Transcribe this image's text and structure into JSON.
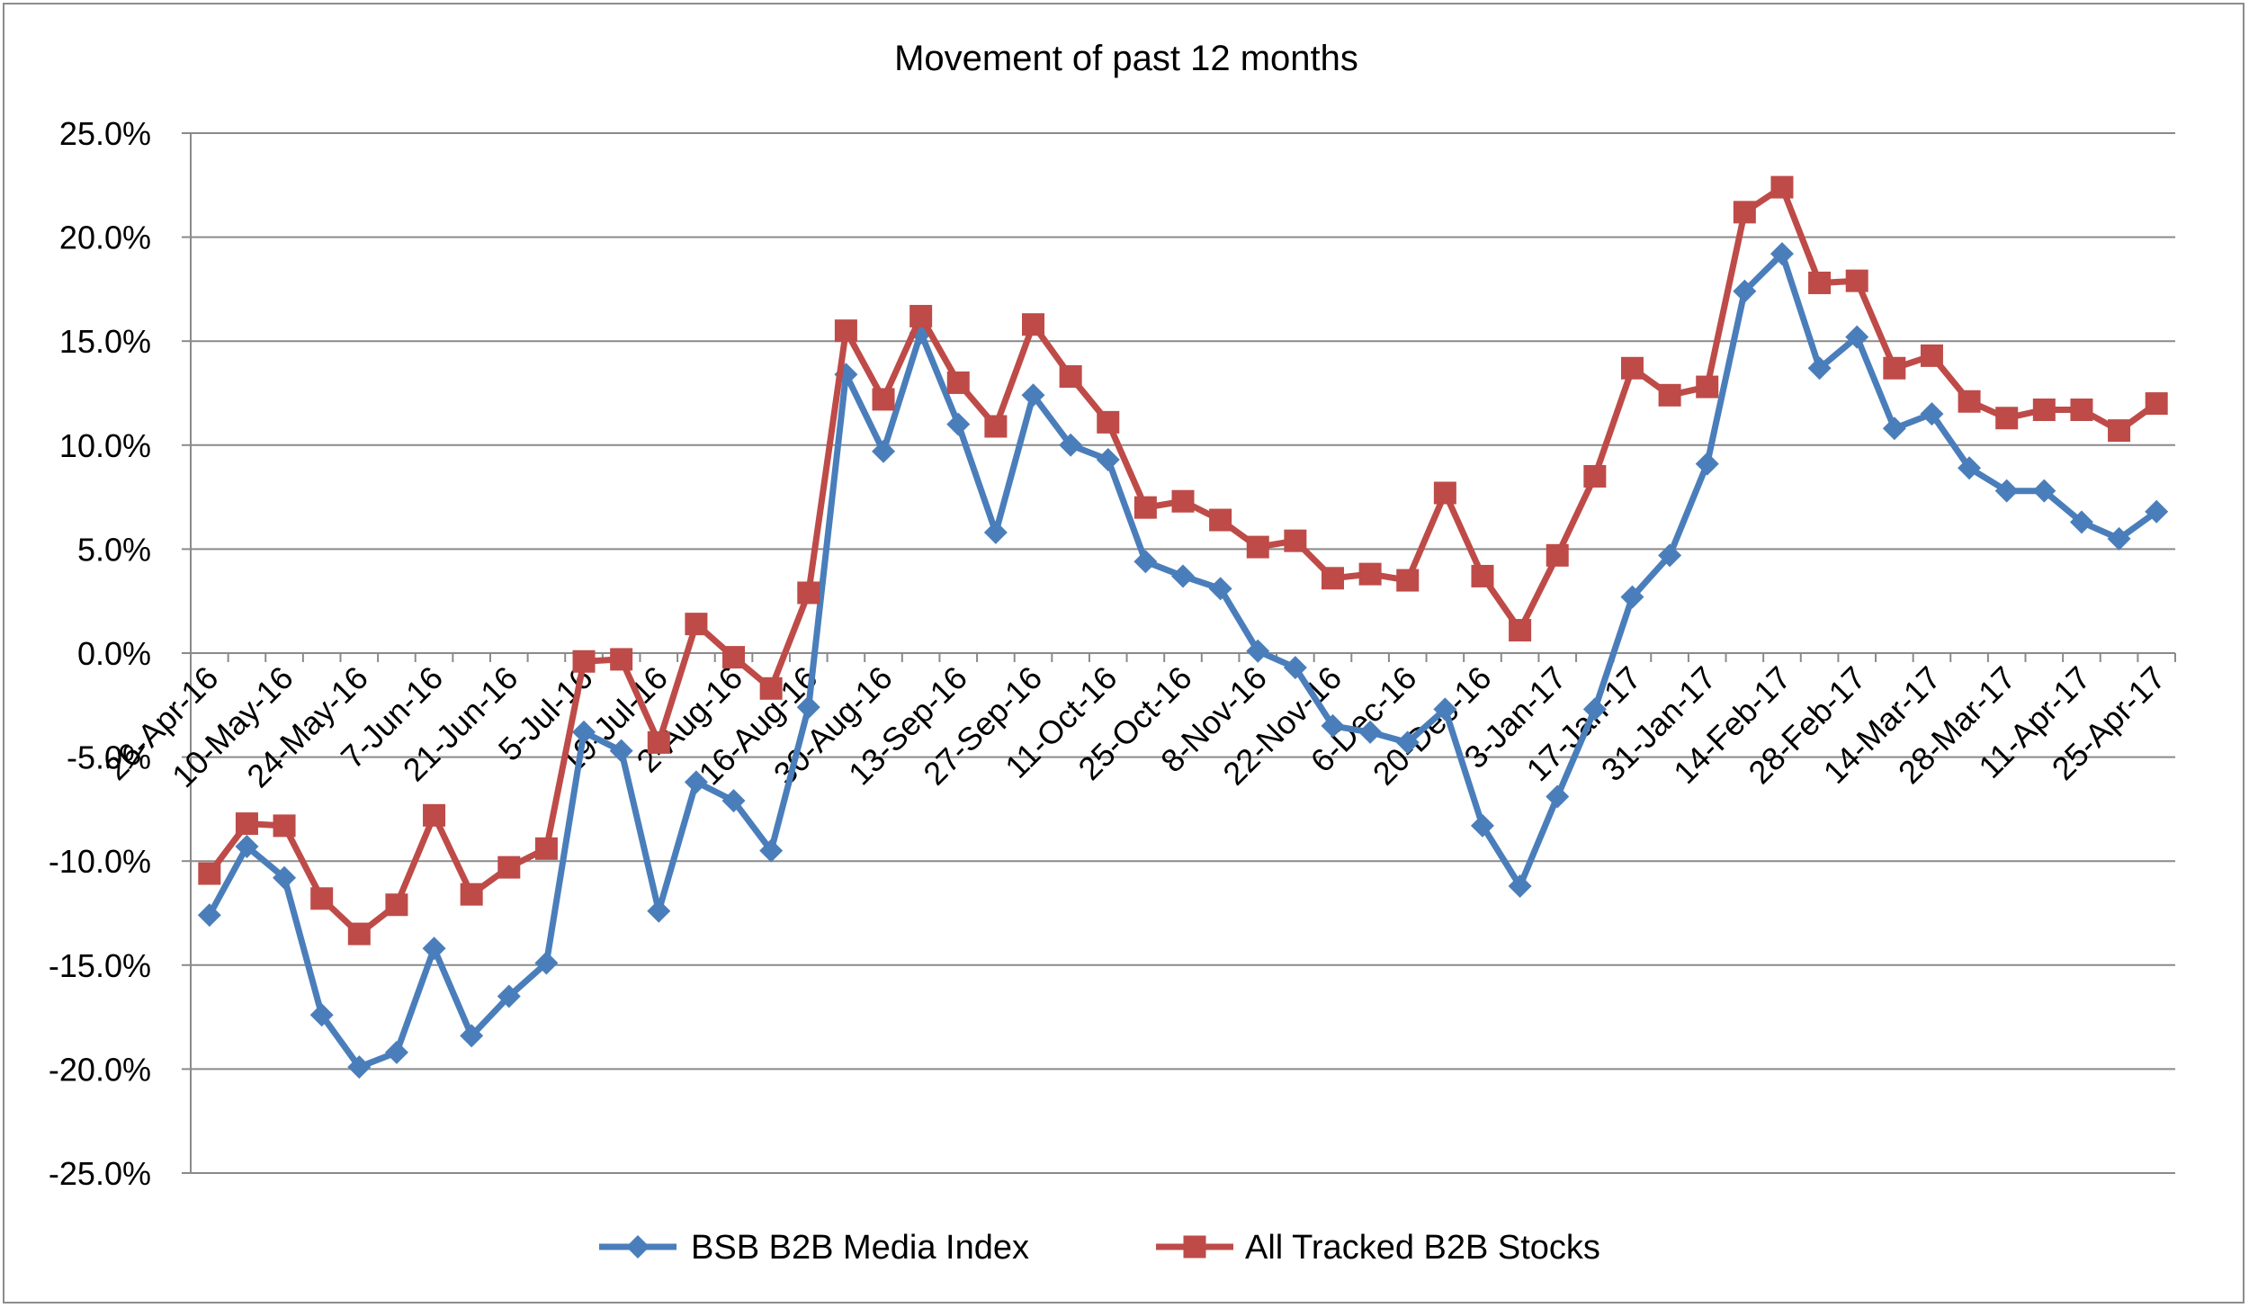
{
  "chart_data": {
    "type": "line",
    "title": "Movement of past 12 months",
    "xlabel": "",
    "ylabel": "",
    "ylim": [
      -0.25,
      0.25
    ],
    "grid": "horizontal",
    "legend_position": "bottom",
    "yticks": [
      "25.0%",
      "20.0%",
      "15.0%",
      "10.0%",
      "5.0%",
      "0.0%",
      "-5.0%",
      "-10.0%",
      "-15.0%",
      "-20.0%",
      "-25.0%"
    ],
    "x_tick_labels": [
      "26-Apr-16",
      "10-May-16",
      "24-May-16",
      "7-Jun-16",
      "21-Jun-16",
      "5-Jul-16",
      "19-Jul-16",
      "2-Aug-16",
      "16-Aug-16",
      "30-Aug-16",
      "13-Sep-16",
      "27-Sep-16",
      "11-Oct-16",
      "25-Oct-16",
      "8-Nov-16",
      "22-Nov-16",
      "6-Dec-16",
      "20-Dec-16",
      "3-Jan-17",
      "17-Jan-17",
      "31-Jan-17",
      "14-Feb-17",
      "28-Feb-17",
      "14-Mar-17",
      "28-Mar-17",
      "11-Apr-17",
      "25-Apr-17"
    ],
    "series": [
      {
        "name": "BSB B2B Media Index",
        "color": "#4a7ebb",
        "marker": "diamond",
        "values": [
          -0.126,
          -0.093,
          -0.108,
          -0.174,
          -0.199,
          -0.192,
          -0.142,
          -0.184,
          -0.165,
          -0.149,
          -0.038,
          -0.047,
          -0.124,
          -0.062,
          -0.071,
          -0.095,
          -0.026,
          0.134,
          0.097,
          0.154,
          0.11,
          0.058,
          0.124,
          0.1,
          0.093,
          0.044,
          0.037,
          0.031,
          0.001,
          -0.007,
          -0.035,
          -0.038,
          -0.043,
          -0.027,
          -0.083,
          -0.112,
          -0.069,
          -0.027,
          0.027,
          0.047,
          0.091,
          0.174,
          0.192,
          0.137,
          0.152,
          0.108,
          0.115,
          0.089,
          0.078,
          0.078,
          0.063,
          0.055,
          0.068
        ]
      },
      {
        "name": "All Tracked B2B Stocks",
        "color": "#be4b48",
        "marker": "square",
        "values": [
          -0.106,
          -0.082,
          -0.083,
          -0.118,
          -0.135,
          -0.121,
          -0.078,
          -0.116,
          -0.103,
          -0.094,
          -0.004,
          -0.003,
          -0.043,
          0.014,
          -0.002,
          -0.017,
          0.029,
          0.155,
          0.122,
          0.162,
          0.13,
          0.109,
          0.158,
          0.133,
          0.111,
          0.07,
          0.073,
          0.064,
          0.051,
          0.054,
          0.036,
          0.038,
          0.035,
          0.077,
          0.037,
          0.011,
          0.047,
          0.085,
          0.137,
          0.124,
          0.128,
          0.212,
          0.224,
          0.178,
          0.179,
          0.137,
          0.143,
          0.121,
          0.113,
          0.117,
          0.117,
          0.107,
          0.12
        ]
      }
    ]
  }
}
